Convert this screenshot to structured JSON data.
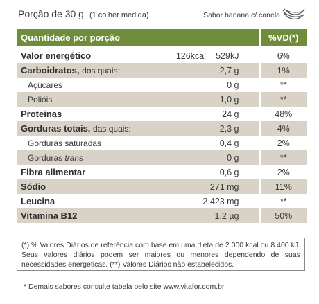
{
  "header": {
    "portion": "Porção de 30 g",
    "portion_sub": "(1 colher medida)",
    "flavor": "Sabor banana c/ canela"
  },
  "table": {
    "col_name": "Quantidade por porção",
    "col_dv": "%VD(*)",
    "rows": [
      {
        "name": "Valor energético",
        "qualifier": "",
        "value": "126kcal = 529kJ",
        "dv": "6%"
      },
      {
        "name": "Carboidratos,",
        "qualifier": "dos quais:",
        "value": "2,7 g",
        "dv": "1%"
      },
      {
        "name": "Açúcares",
        "qualifier": "",
        "value": "0 g",
        "dv": "**"
      },
      {
        "name": "Polióis",
        "qualifier": "",
        "value": "1,0 g",
        "dv": "**"
      },
      {
        "name": "Proteínas",
        "qualifier": "",
        "value": "24 g",
        "dv": "48%"
      },
      {
        "name": "Gorduras totais,",
        "qualifier": "das quais:",
        "value": "2,3 g",
        "dv": "4%"
      },
      {
        "name": "Gorduras saturadas",
        "qualifier": "",
        "value": "0,4 g",
        "dv": "2%"
      },
      {
        "name": "Gorduras",
        "qualifier": "trans",
        "value": "0 g",
        "dv": "**"
      },
      {
        "name": "Fibra alimentar",
        "qualifier": "",
        "value": "0,6 g",
        "dv": "2%"
      },
      {
        "name": "Sódio",
        "qualifier": "",
        "value": "271 mg",
        "dv": "11%"
      },
      {
        "name": "Leucina",
        "qualifier": "",
        "value": "2.423 mg",
        "dv": "**"
      },
      {
        "name": "Vitamina B12",
        "qualifier": "",
        "value": "1,2 µg",
        "dv": "50%"
      }
    ]
  },
  "note": "(*) % Valores Diários de referência com base em uma dieta de 2.000 kcal ou 8.400 kJ. Seus valores diários podem ser maiores ou menores dependendo de suas necessidades energéticas. (**) Valores Diários não estabelecidos.",
  "footer": "* Demais sabores consulte tabela pelo site www.vitafor.com.br",
  "colors": {
    "header_bg": "#6f8c3a",
    "row_shade": "#d8d3c6"
  },
  "icons": {
    "flavor_icon": "banana-icon"
  }
}
